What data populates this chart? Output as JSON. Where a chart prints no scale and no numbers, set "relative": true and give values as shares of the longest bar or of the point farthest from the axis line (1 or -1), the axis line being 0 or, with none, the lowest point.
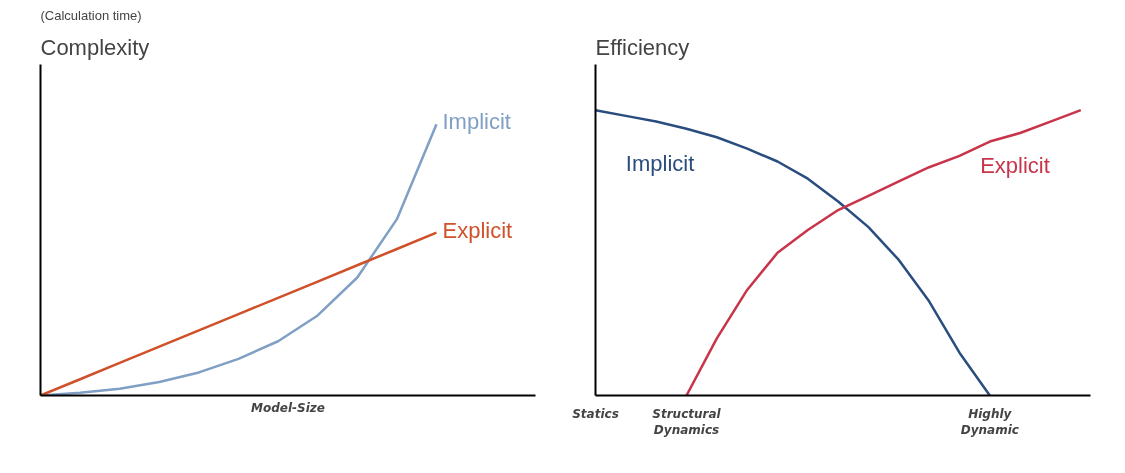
{
  "chart_data": [
    {
      "type": "line",
      "ylabel": "Complexity",
      "xlabel": "Model-Size",
      "annotations": [
        "(Calculation time)"
      ],
      "relative": true,
      "categories": [
        null,
        null,
        null,
        null,
        null,
        null,
        null,
        null,
        null,
        null,
        null
      ],
      "series": [
        {
          "name": "Implicit",
          "color": "#7f9fc4",
          "values": [
            0,
            0.01,
            0.025,
            0.05,
            0.085,
            0.135,
            0.2,
            0.295,
            0.435,
            0.65,
            1.0
          ]
        },
        {
          "name": "Explicit",
          "color": "#d0502a",
          "values": [
            0,
            0.06,
            0.12,
            0.18,
            0.24,
            0.3,
            0.36,
            0.42,
            0.48,
            0.54,
            0.6
          ]
        }
      ]
    },
    {
      "type": "line",
      "ylabel": "Efficiency",
      "relative": true,
      "categories": [
        "Statics",
        null,
        null,
        "Structural Dynamics",
        null,
        null,
        null,
        null,
        null,
        null,
        null,
        null,
        null,
        "Highly Dynamic",
        null,
        null,
        null
      ],
      "series": [
        {
          "name": "Implicit",
          "color": "#2a4d7f",
          "values": [
            1.0,
            0.98,
            0.96,
            0.935,
            0.905,
            0.865,
            0.82,
            0.76,
            0.68,
            0.59,
            0.475,
            0.33,
            0.15,
            0,
            null,
            null,
            null
          ]
        },
        {
          "name": "Explicit",
          "color": "#c8344a",
          "values": [
            null,
            null,
            null,
            0,
            0.2,
            0.37,
            0.5,
            0.58,
            0.65,
            0.7,
            0.75,
            0.8,
            0.84,
            0.89,
            0.92,
            0.96,
            1.0
          ]
        }
      ]
    }
  ]
}
